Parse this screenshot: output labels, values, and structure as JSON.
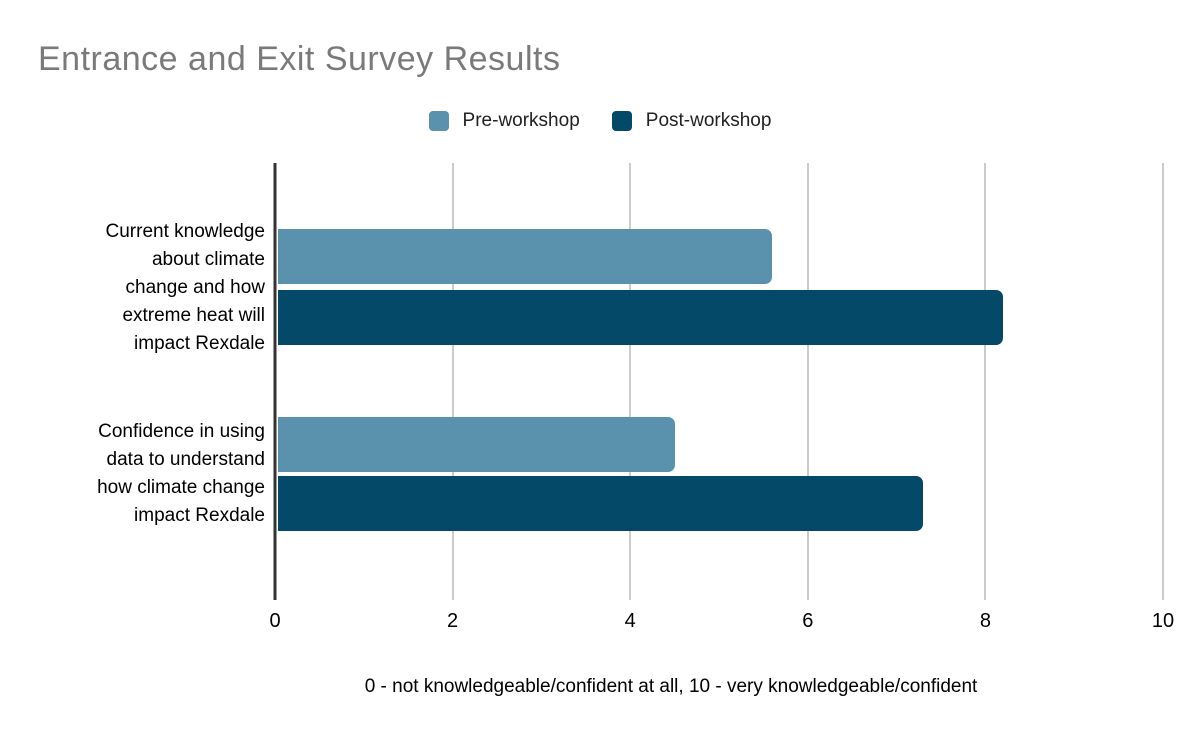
{
  "title": "Entrance and Exit Survey Results",
  "legend": {
    "items": [
      {
        "label": "Pre-workshop",
        "color": "#5a92ad"
      },
      {
        "label": "Post-workshop",
        "color": "#044967"
      }
    ]
  },
  "category_labels_display": [
    "Current knowledge\nabout climate\nchange and how\nextreme heat will\nimpact Rexdale",
    "Confidence in using\ndata to understand\nhow climate change\nimpact Rexdale"
  ],
  "chart_data": {
    "type": "bar",
    "orientation": "horizontal",
    "title": "Entrance and Exit Survey Results",
    "categories": [
      "Current knowledge about climate change and how extreme heat will impact Rexdale",
      "Confidence in using data to understand how climate change impact Rexdale"
    ],
    "series": [
      {
        "name": "Pre-workshop",
        "color": "#5a92ad",
        "values": [
          5.6,
          4.5
        ]
      },
      {
        "name": "Post-workshop",
        "color": "#044967",
        "values": [
          8.2,
          7.3
        ]
      }
    ],
    "xlim": [
      0,
      10
    ],
    "x_ticks": [
      0,
      2,
      4,
      6,
      8,
      10
    ],
    "xlabel": "0 - not knowledgeable/confident at all, 10 - very knowledgeable/confident",
    "grid": true,
    "legend_position": "top"
  },
  "colors": {
    "grid": "#cccccc",
    "axis": "#333333",
    "title_text": "#7a7a7a",
    "body_text": "#000000"
  }
}
